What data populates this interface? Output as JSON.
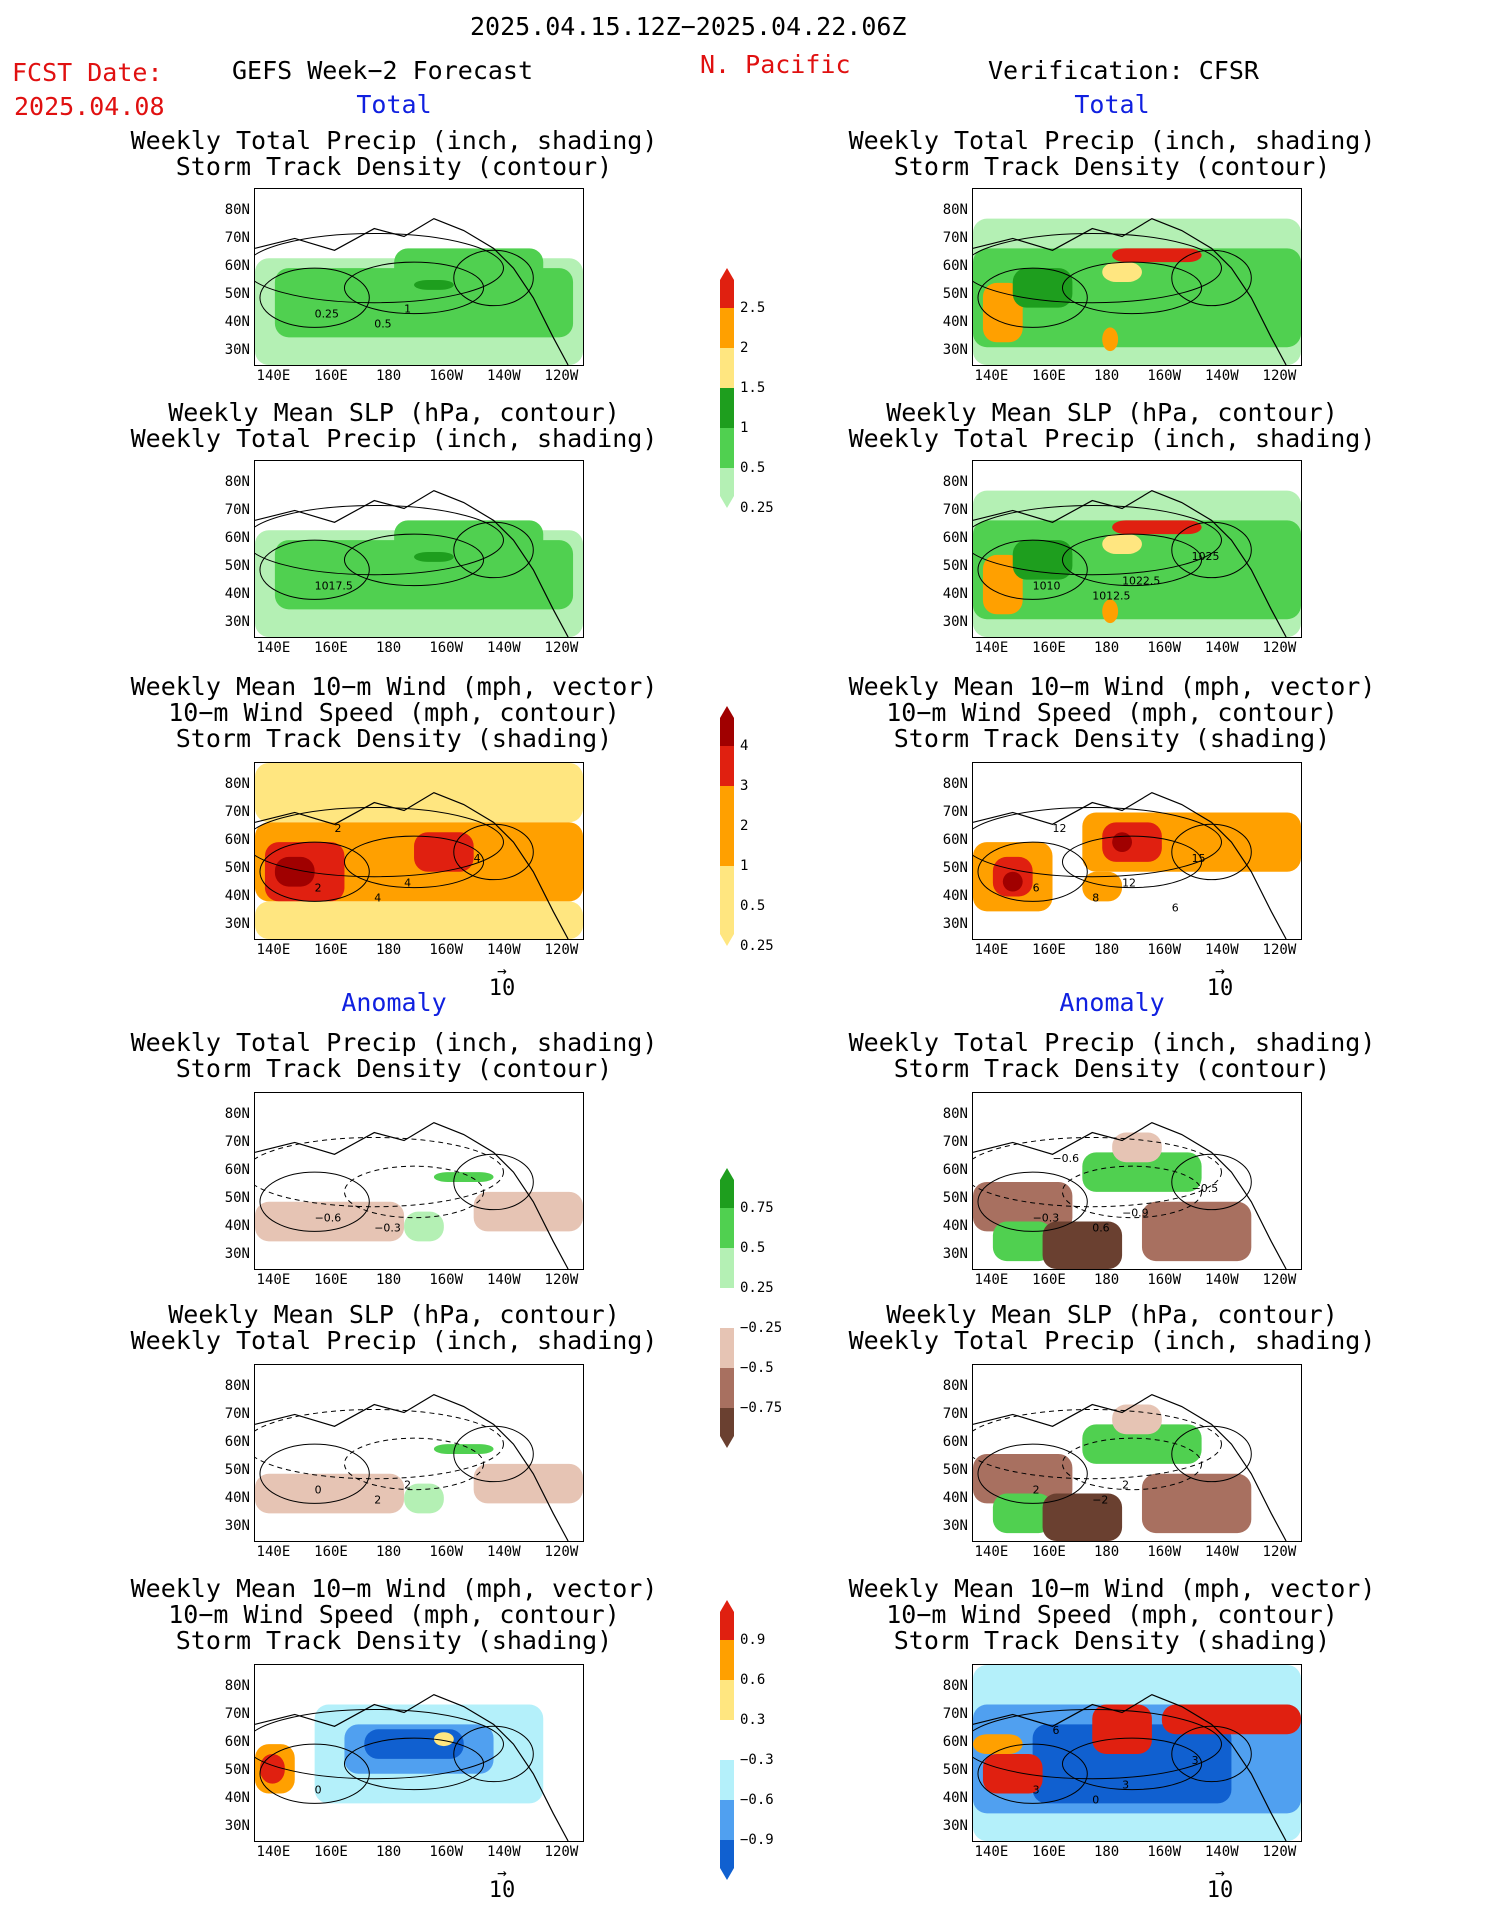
{
  "header": {
    "date_range": "2025.04.15.12Z−2025.04.22.06Z",
    "fcst_label": "FCST Date:",
    "fcst_date": "2025.04.08",
    "forecast_title": "GEFS Week−2 Forecast",
    "region": "N. Pacific",
    "verification": "Verification: CFSR"
  },
  "sections": {
    "total": "Total",
    "anomaly": "Anomaly"
  },
  "panel_titles": {
    "precip_storm": "Weekly Total Precip (inch, shading)\nStorm Track Density (contour)",
    "slp_precip": "Weekly Mean SLP (hPa, contour)\nWeekly Total Precip (inch, shading)",
    "wind_storm": "Weekly Mean 10−m Wind (mph, vector)\n10−m Wind Speed (mph, contour)\nStorm Track Density (shading)"
  },
  "axes": {
    "lat": [
      "80N",
      "70N",
      "60N",
      "50N",
      "40N",
      "30N"
    ],
    "lon": [
      "140E",
      "160E",
      "180",
      "160W",
      "140W",
      "120W"
    ]
  },
  "vector_ref": "10",
  "colorbars": {
    "precip_total": [
      "2.5",
      "2",
      "1.5",
      "1",
      "0.5",
      "0.25"
    ],
    "storm_total": [
      "4",
      "3",
      "2",
      "1",
      "0.5",
      "0.25"
    ],
    "precip_anom": [
      "0.75",
      "0.5",
      "0.25",
      "−0.25",
      "−0.5",
      "−0.75"
    ],
    "storm_anom": [
      "0.9",
      "0.6",
      "0.3",
      "−0.3",
      "−0.6",
      "−0.9"
    ]
  },
  "contour_labels": {
    "l1": [
      "0.25",
      "0.5",
      "1"
    ],
    "r2": [
      "1010",
      "1012.5",
      "1022.5",
      "1025"
    ],
    "l2": [
      "1017.5"
    ],
    "l3": [
      "2",
      "4",
      "4",
      "4",
      "2"
    ],
    "r3": [
      "6",
      "8",
      "12",
      "15",
      "12",
      "6"
    ],
    "l4": [
      "−0.6",
      "−0.3"
    ],
    "r4": [
      "−0.3",
      "0.6",
      "−0.9",
      "−0.5",
      "−0.6"
    ],
    "l5": [
      "0",
      "2",
      "2"
    ],
    "r5": [
      "2",
      "−2",
      "2"
    ],
    "l6": [
      "0"
    ],
    "r6": [
      "3",
      "0",
      "3",
      "3",
      "6"
    ]
  },
  "colors": {
    "header_red": "#e01010",
    "section_blue": "#1020e0",
    "precip_green_light": "#b4f0b4",
    "precip_green": "#50d050",
    "precip_green_dark": "#1e9e1e",
    "yellow": "#ffe680",
    "orange": "#ffa000",
    "red": "#e02010",
    "dark_red": "#a00000",
    "brown_light": "#e6c4b4",
    "brown": "#a87060",
    "brown_dark": "#6a4030",
    "blue_light": "#b4f0fa",
    "blue": "#50a0f0",
    "blue_dark": "#1060d0"
  }
}
